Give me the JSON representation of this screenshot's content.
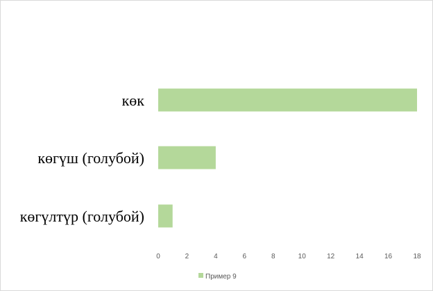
{
  "chart_data": {
    "type": "bar",
    "orientation": "horizontal",
    "categories": [
      "көк",
      "көгүш (голубой)",
      "көгүлтүр (голубой)"
    ],
    "series": [
      {
        "name": "Пример 9",
        "values": [
          18,
          4,
          1
        ],
        "color": "#b4d89a"
      }
    ],
    "xlim": [
      0,
      18
    ],
    "xticks": [
      "0",
      "2",
      "4",
      "6",
      "8",
      "10",
      "12",
      "14",
      "16",
      "18"
    ],
    "grid": false,
    "legend": "bottom"
  }
}
